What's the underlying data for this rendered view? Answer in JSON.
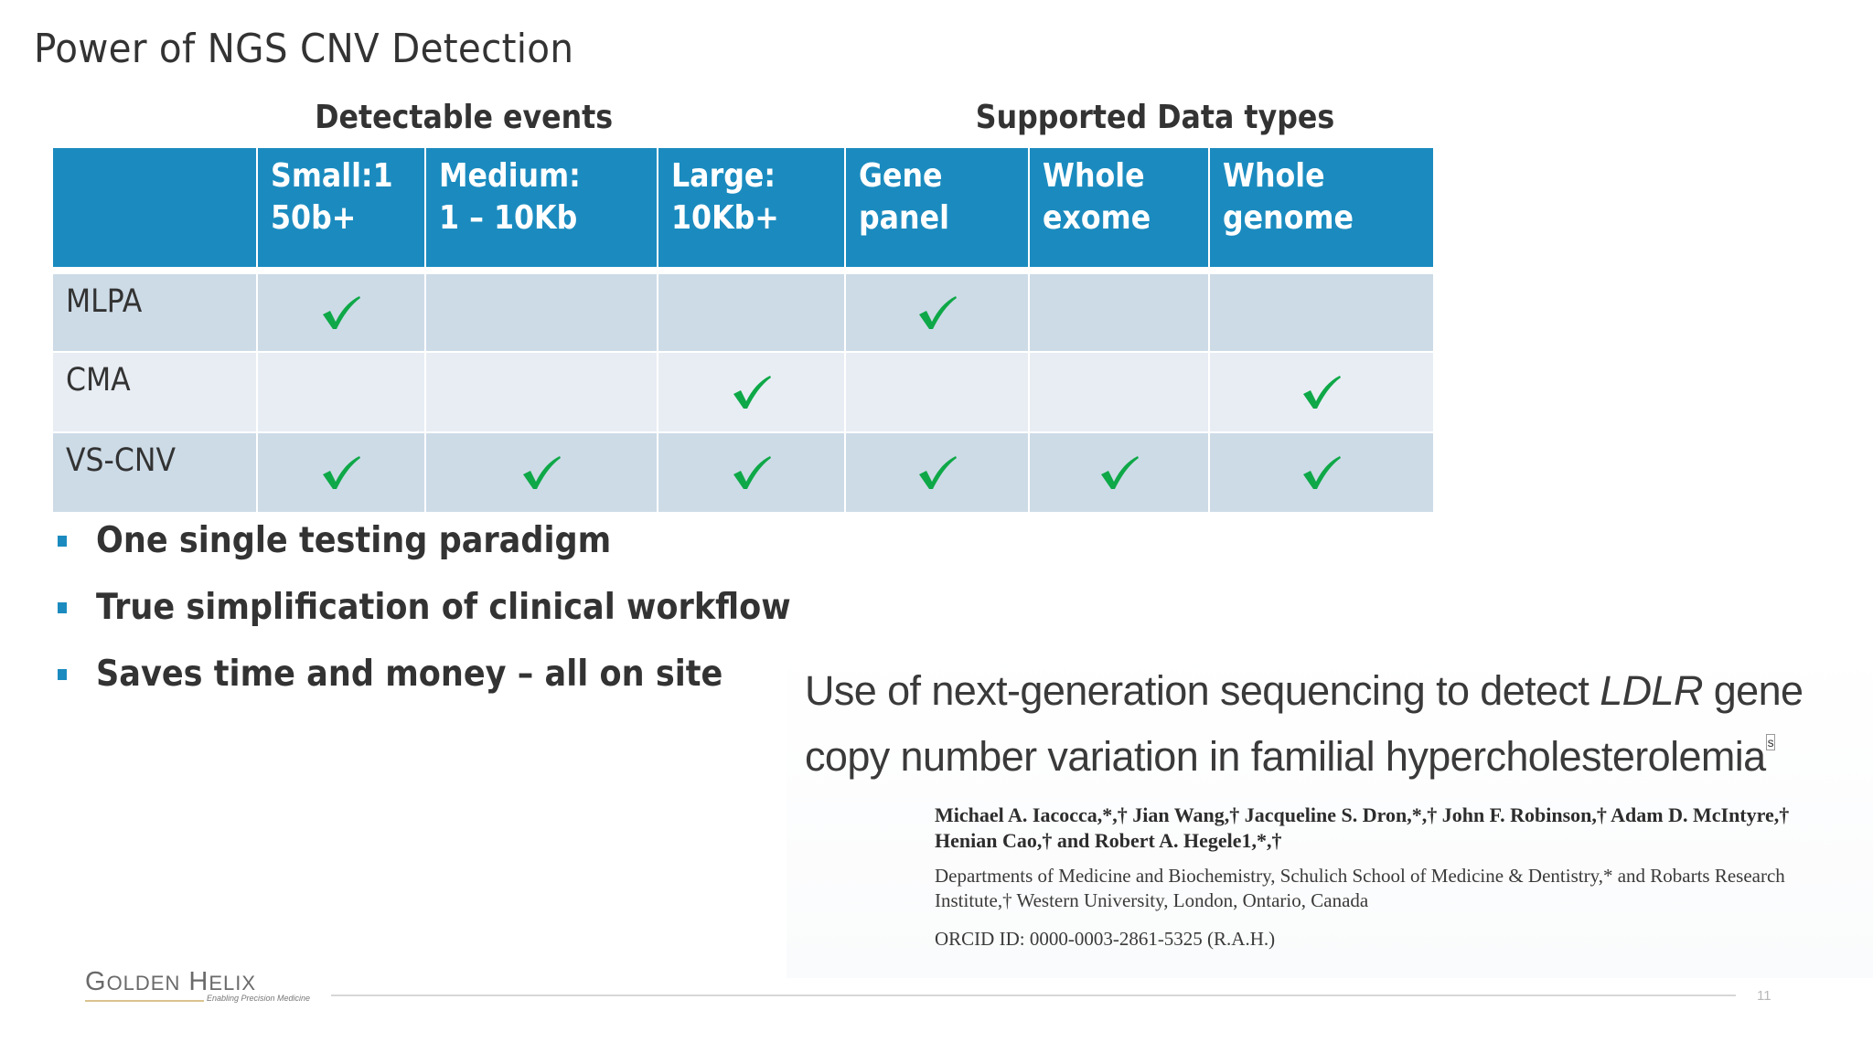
{
  "slide": {
    "title": "Power of NGS CNV Detection",
    "page_number": "11"
  },
  "table": {
    "group_headers": {
      "detectable_events": "Detectable events",
      "supported_data_types": "Supported Data types"
    },
    "columns": [
      "",
      "Small:1\n50b+",
      "Medium:\n1 – 10Kb",
      "Large:\n10Kb+",
      "Gene\npanel",
      "Whole\nexome",
      "Whole\ngenome"
    ],
    "rows": [
      {
        "label": "MLPA",
        "checks": [
          true,
          false,
          false,
          true,
          false,
          false
        ]
      },
      {
        "label": "CMA",
        "checks": [
          false,
          false,
          true,
          false,
          false,
          true
        ]
      },
      {
        "label": "VS-CNV",
        "checks": [
          true,
          true,
          true,
          true,
          true,
          true
        ]
      }
    ],
    "check_icon": "checkmark-icon",
    "colors": {
      "header_bg": "#1b8bbf",
      "row_dark": "#cddbe7",
      "row_light": "#e8edf4",
      "check": "#0fa848"
    }
  },
  "bullets": [
    "One single testing paradigm",
    "True simplification of clinical workflow",
    "Saves time and money – all on site"
  ],
  "paper": {
    "title_line1_pre": "Use of next-generation sequencing to detect ",
    "title_line1_gene": "LDLR",
    "title_line1_post": " gene",
    "title_line2": "copy number variation in familial hypercholesterolemia",
    "title_sup": "s",
    "authors_line1": "Michael A. Iacocca,*,† Jian Wang,† Jacqueline S. Dron,*,† John F. Robinson,† Adam D. McIntyre,†",
    "authors_line2": "Henian Cao,† and Robert A. Hegele1,*,†",
    "affiliation_line1": "Departments of Medicine and Biochemistry, Schulich School of Medicine & Dentistry,* and Robarts Research",
    "affiliation_line2": "Institute,† Western University, London, Ontario, Canada",
    "orcid": "ORCID ID: 0000-0003-2861-5325 (R.A.H.)"
  },
  "footer": {
    "logo_text": "Golden Helix",
    "logo_g": "G",
    "logo_olden": "OLDEN",
    "logo_h": "H",
    "logo_elix": "ELIX",
    "logo_tagline": "Enabling Precision Medicine"
  }
}
